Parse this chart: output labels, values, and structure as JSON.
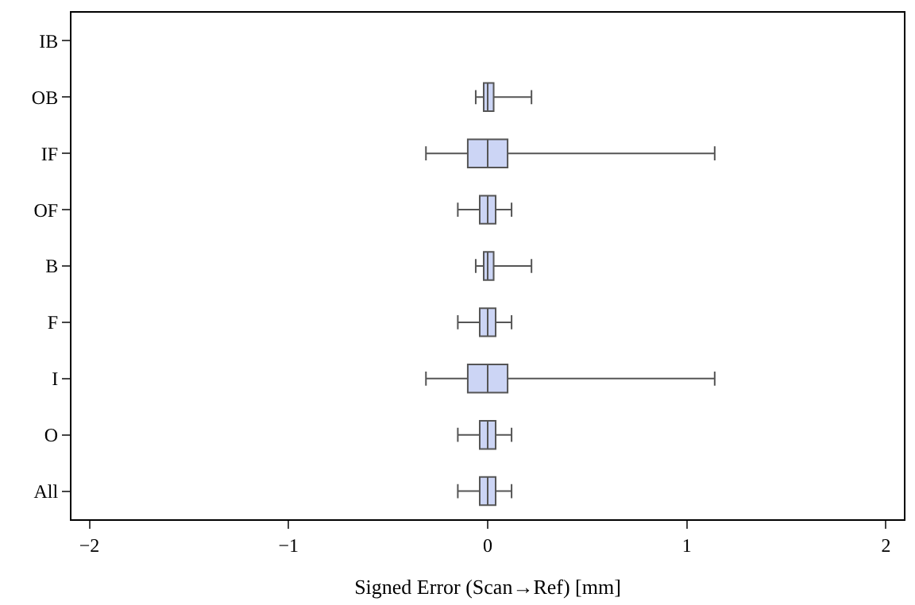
{
  "chart_data": {
    "type": "box",
    "orientation": "horizontal",
    "xlabel": "Signed Error (Scan→Ref) [mm]",
    "categories": [
      "IB",
      "OB",
      "IF",
      "OF",
      "B",
      "F",
      "I",
      "O",
      "All"
    ],
    "boxes": [
      null,
      {
        "low": -0.06,
        "q1": -0.02,
        "median": 0.0,
        "q3": 0.03,
        "high": 0.22
      },
      {
        "low": -0.31,
        "q1": -0.1,
        "median": 0.0,
        "q3": 0.1,
        "high": 1.14
      },
      {
        "low": -0.15,
        "q1": -0.04,
        "median": 0.0,
        "q3": 0.04,
        "high": 0.12
      },
      {
        "low": -0.06,
        "q1": -0.02,
        "median": 0.0,
        "q3": 0.03,
        "high": 0.22
      },
      {
        "low": -0.15,
        "q1": -0.04,
        "median": 0.0,
        "q3": 0.04,
        "high": 0.12
      },
      {
        "low": -0.31,
        "q1": -0.1,
        "median": 0.0,
        "q3": 0.1,
        "high": 1.14
      },
      {
        "low": -0.15,
        "q1": -0.04,
        "median": 0.0,
        "q3": 0.04,
        "high": 0.12
      },
      {
        "low": -0.15,
        "q1": -0.04,
        "median": 0.0,
        "q3": 0.04,
        "high": 0.12
      }
    ],
    "color": "#ccd5f5",
    "xlim": [
      -2.09,
      2.09
    ],
    "xticks": [
      {
        "value": -2,
        "label": "−2"
      },
      {
        "value": -1,
        "label": "−1"
      },
      0,
      1,
      2
    ],
    "legend": false
  }
}
